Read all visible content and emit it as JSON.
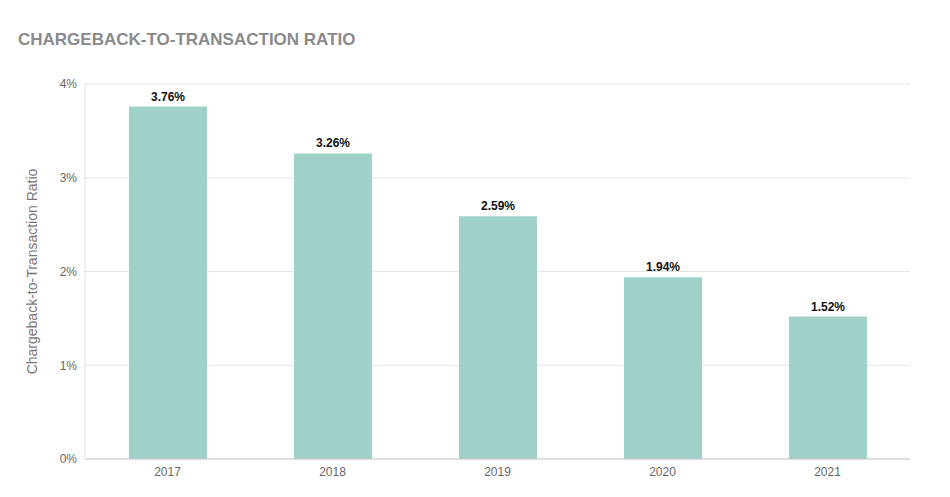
{
  "chart_data": {
    "type": "bar",
    "title": "CHARGEBACK-TO-TRANSACTION RATIO",
    "y_label": "Chargeback-to-Transaction Ratio",
    "categories": [
      "2017",
      "2018",
      "2019",
      "2020",
      "2021"
    ],
    "values": [
      3.76,
      3.26,
      2.59,
      1.94,
      1.52
    ],
    "value_labels": [
      "3.76%",
      "3.26%",
      "2.59%",
      "1.94%",
      "1.52%"
    ],
    "color": "#9fd1c8",
    "ylim": [
      0,
      4
    ],
    "yticks": [
      {
        "value": 0,
        "label": "0%"
      },
      {
        "value": 1,
        "label": "1%"
      },
      {
        "value": 2,
        "label": "2%"
      },
      {
        "value": 3,
        "label": "3%"
      },
      {
        "value": 4,
        "label": "4%"
      }
    ],
    "grid": true,
    "data_labels": true
  }
}
